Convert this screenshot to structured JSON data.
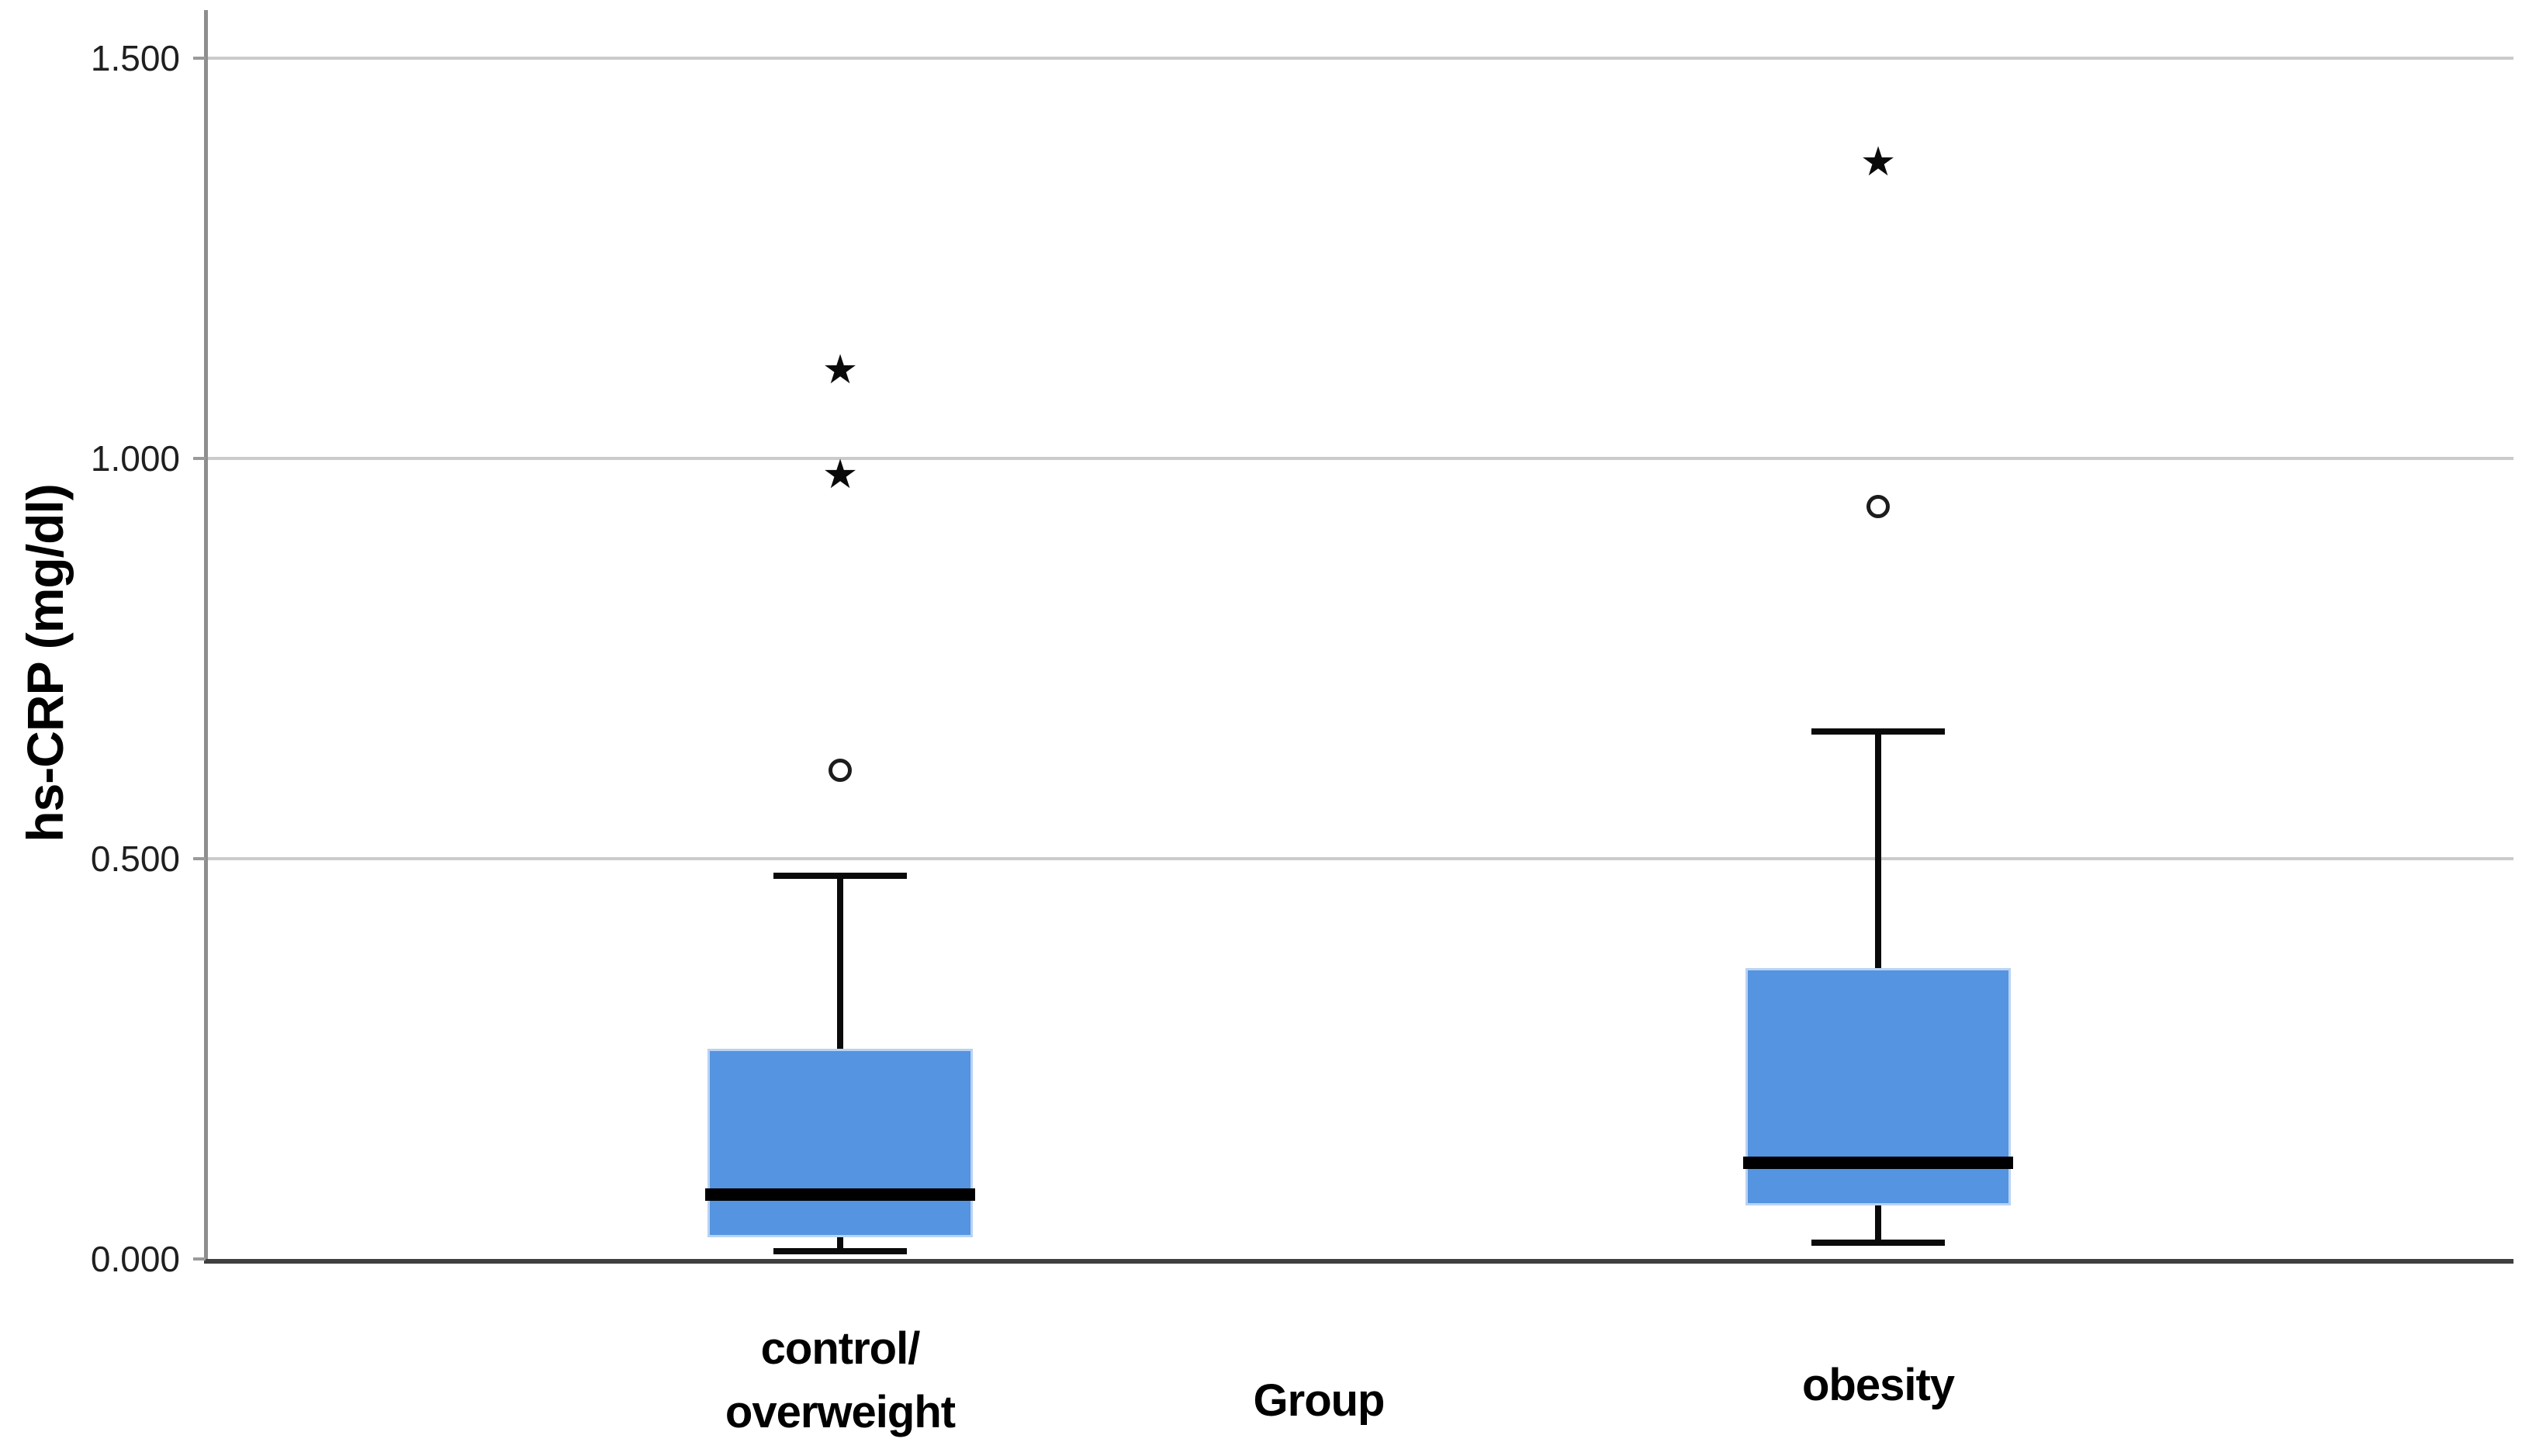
{
  "chart_data": {
    "type": "boxplot",
    "title": "",
    "ylabel": "hs-CRP (mg/dl)",
    "xlabel": "Group",
    "ylim": [
      0,
      1.56
    ],
    "yticks": [
      0.0,
      0.5,
      1.0,
      1.5
    ],
    "ytick_labels": [
      "0.000",
      "0.500",
      "1.000",
      "1.500"
    ],
    "grid": "horizontal-only",
    "legend": "none",
    "box_fill_color": "#5494E0",
    "box_edge_color": "#b9d2f3",
    "line_color": "#000000",
    "outlier_marker": "circle",
    "extreme_marker": "star",
    "categories": [
      "control/overweight",
      "obesity"
    ],
    "series": [
      {
        "category": "control/overweight",
        "label_lines": [
          "control/",
          "overweight"
        ],
        "whisker_low": 0.01,
        "q1": 0.03,
        "median": 0.08,
        "q3": 0.26,
        "whisker_high": 0.48,
        "outliers_circle": [
          0.61
        ],
        "extremes_star": [
          0.98,
          1.11
        ]
      },
      {
        "category": "obesity",
        "label_lines": [
          "obesity"
        ],
        "whisker_low": 0.02,
        "q1": 0.07,
        "median": 0.12,
        "q3": 0.36,
        "whisker_high": 0.66,
        "outliers_circle": [
          0.94
        ],
        "extremes_star": [
          1.37
        ]
      }
    ]
  }
}
